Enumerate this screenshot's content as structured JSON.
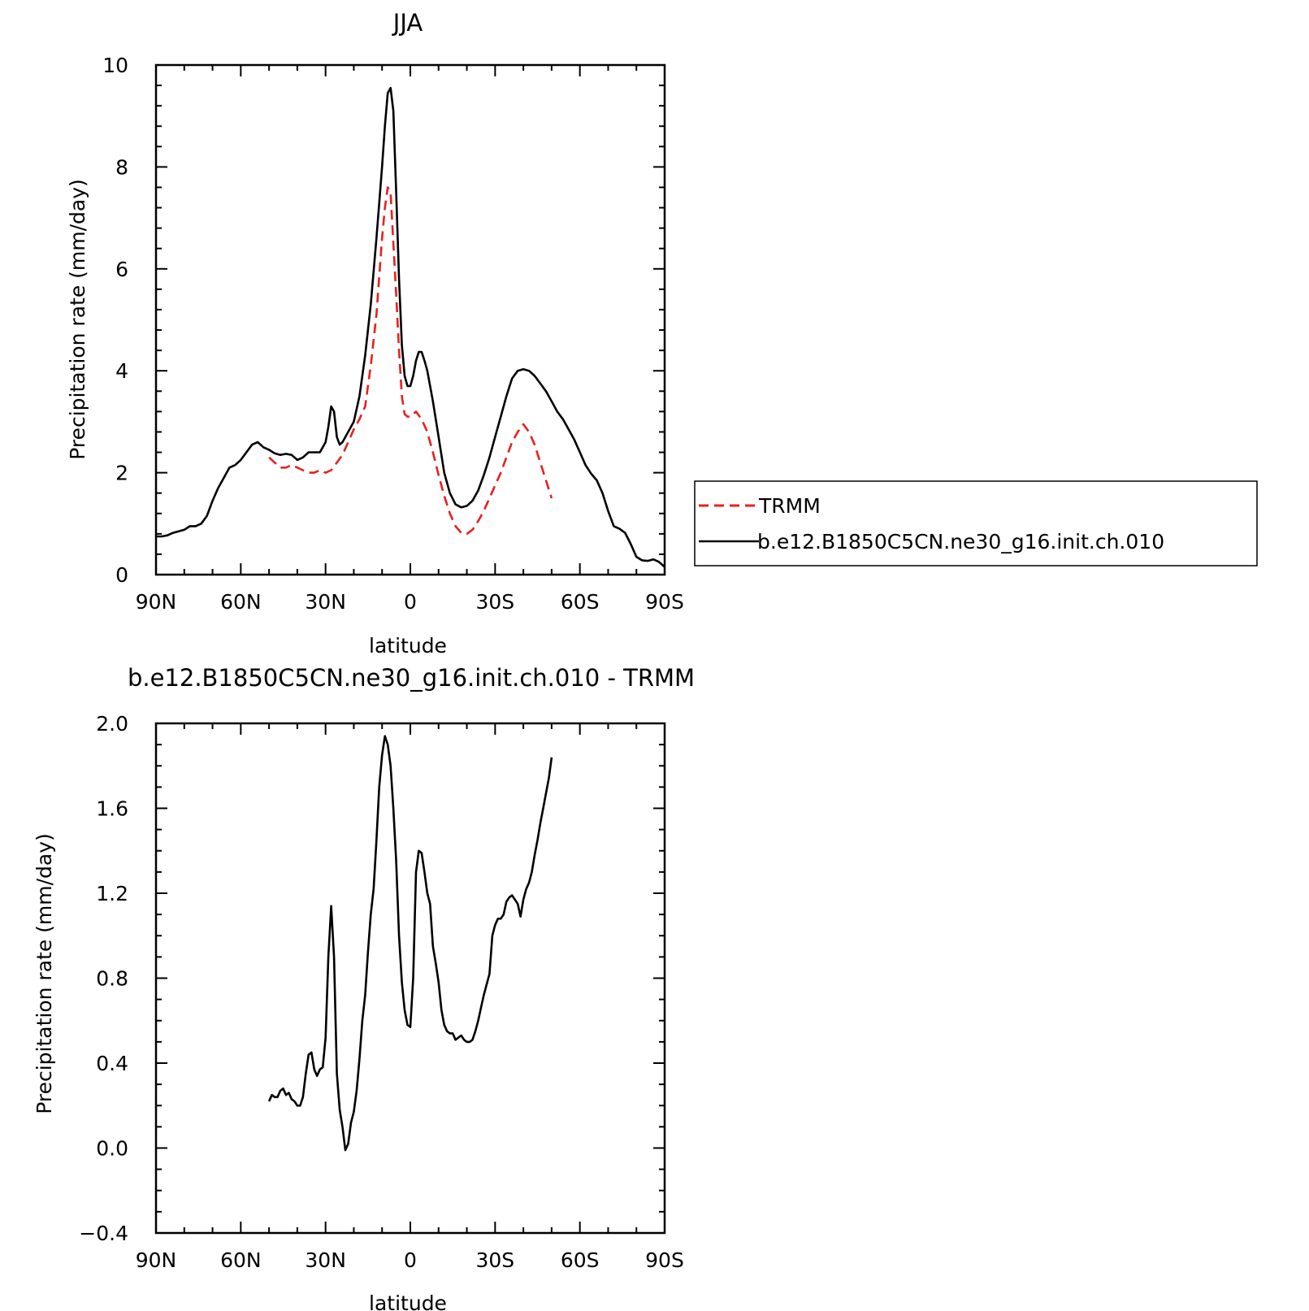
{
  "chart_data": [
    {
      "type": "line",
      "title": "JJA",
      "xlabel": "latitude",
      "ylabel": "Precipitation rate (mm/day)",
      "xlim": [
        90,
        -90
      ],
      "ylim": [
        0,
        10
      ],
      "x_ticks": [
        90,
        60,
        30,
        0,
        -30,
        -60,
        -90
      ],
      "x_tick_labels": [
        "90N",
        "60N",
        "30N",
        "0",
        "30S",
        "60S",
        "90S"
      ],
      "y_ticks": [
        0,
        2,
        4,
        6,
        8,
        10
      ],
      "y_tick_labels": [
        "0",
        "2",
        "4",
        "6",
        "8",
        "10"
      ],
      "legend": {
        "position": "right",
        "entries": [
          "TRMM",
          "b.e12.B1850C5CN.ne30_g16.init.ch.010"
        ]
      },
      "series": [
        {
          "name": "TRMM",
          "color": "#e8201f",
          "dash": "dashed",
          "x": [
            50,
            48,
            46,
            44,
            42,
            40,
            38,
            36,
            34,
            32,
            30,
            28,
            26,
            24,
            22,
            20,
            18,
            16,
            14,
            12,
            10,
            9,
            8,
            7,
            6,
            5,
            4,
            3,
            2,
            1,
            0,
            -2,
            -4,
            -6,
            -8,
            -10,
            -12,
            -14,
            -16,
            -18,
            -20,
            -22,
            -24,
            -26,
            -28,
            -30,
            -32,
            -34,
            -36,
            -38,
            -40,
            -42,
            -44,
            -46,
            -48,
            -50
          ],
          "y": [
            2.3,
            2.2,
            2.1,
            2.1,
            2.15,
            2.1,
            2.05,
            2.0,
            2.0,
            2.05,
            2.0,
            2.05,
            2.2,
            2.35,
            2.6,
            2.85,
            3.05,
            3.3,
            4.1,
            5.1,
            6.6,
            7.2,
            7.6,
            7.5,
            6.5,
            5.5,
            4.4,
            3.5,
            3.15,
            3.1,
            3.1,
            3.2,
            3.05,
            2.8,
            2.4,
            1.95,
            1.55,
            1.2,
            0.95,
            0.82,
            0.8,
            0.88,
            1.05,
            1.25,
            1.5,
            1.75,
            2.0,
            2.3,
            2.6,
            2.8,
            2.95,
            2.8,
            2.55,
            2.2,
            1.85,
            1.5
          ]
        },
        {
          "name": "b.e12.B1850C5CN.ne30_g16.init.ch.010",
          "color": "#000000",
          "dash": "solid",
          "x": [
            90,
            88,
            86,
            84,
            82,
            80,
            78,
            76,
            74,
            72,
            70,
            68,
            66,
            64,
            62,
            60,
            58,
            56,
            54,
            52,
            50,
            48,
            46,
            44,
            42,
            40,
            38,
            36,
            34,
            32,
            30,
            29,
            28,
            27,
            26,
            25,
            24,
            22,
            20,
            18,
            16,
            14,
            12,
            10,
            9,
            8,
            7,
            6,
            5,
            4,
            3,
            2,
            1,
            0,
            -1,
            -2,
            -3,
            -4,
            -5,
            -6,
            -8,
            -10,
            -12,
            -14,
            -16,
            -18,
            -20,
            -22,
            -24,
            -26,
            -28,
            -30,
            -32,
            -34,
            -36,
            -38,
            -40,
            -42,
            -44,
            -46,
            -48,
            -50,
            -52,
            -54,
            -56,
            -58,
            -60,
            -62,
            -64,
            -66,
            -68,
            -70,
            -72,
            -74,
            -76,
            -78,
            -80,
            -82,
            -84,
            -86,
            -88,
            -90
          ],
          "y": [
            0.75,
            0.75,
            0.77,
            0.82,
            0.85,
            0.88,
            0.95,
            0.95,
            1.0,
            1.15,
            1.45,
            1.7,
            1.9,
            2.1,
            2.15,
            2.25,
            2.4,
            2.55,
            2.6,
            2.5,
            2.45,
            2.38,
            2.35,
            2.37,
            2.35,
            2.25,
            2.3,
            2.4,
            2.4,
            2.4,
            2.6,
            2.9,
            3.3,
            3.2,
            2.7,
            2.55,
            2.6,
            2.8,
            3.0,
            3.5,
            4.3,
            5.3,
            6.6,
            8.0,
            8.8,
            9.45,
            9.55,
            9.1,
            7.5,
            5.8,
            4.5,
            3.9,
            3.7,
            3.7,
            3.9,
            4.2,
            4.37,
            4.37,
            4.2,
            4.0,
            3.4,
            2.7,
            2.0,
            1.6,
            1.38,
            1.32,
            1.35,
            1.45,
            1.65,
            1.95,
            2.3,
            2.7,
            3.1,
            3.5,
            3.85,
            4.0,
            4.03,
            4.0,
            3.9,
            3.75,
            3.6,
            3.4,
            3.2,
            3.05,
            2.85,
            2.65,
            2.4,
            2.15,
            1.98,
            1.85,
            1.6,
            1.25,
            0.95,
            0.9,
            0.82,
            0.6,
            0.35,
            0.28,
            0.27,
            0.3,
            0.25,
            0.15
          ]
        }
      ]
    },
    {
      "type": "line",
      "title": "b.e12.B1850C5CN.ne30_g16.init.ch.010 - TRMM",
      "xlabel": "latitude",
      "ylabel": "Precipitation rate (mm/day)",
      "xlim": [
        90,
        -90
      ],
      "ylim": [
        -0.4,
        2.0
      ],
      "x_ticks": [
        90,
        60,
        30,
        0,
        -30,
        -60,
        -90
      ],
      "x_tick_labels": [
        "90N",
        "60N",
        "30N",
        "0",
        "30S",
        "60S",
        "90S"
      ],
      "y_ticks": [
        -0.4,
        0.0,
        0.4,
        0.8,
        1.2,
        1.6,
        2.0
      ],
      "y_tick_labels": [
        "−0.4",
        "0.0",
        "0.4",
        "0.8",
        "1.2",
        "1.6",
        "2.0"
      ],
      "series": [
        {
          "color": "#000000",
          "dash": "solid",
          "x": [
            50,
            49,
            48,
            47,
            46,
            45,
            44,
            43,
            42,
            41,
            40,
            39,
            38,
            37,
            36,
            35,
            34,
            33,
            32,
            31,
            30,
            29,
            28,
            27,
            26,
            25,
            24,
            23,
            22,
            21,
            20,
            19,
            18,
            17,
            16,
            15,
            14,
            13,
            12,
            11,
            10,
            9,
            8,
            7,
            6,
            5,
            4,
            3,
            2,
            1,
            0,
            -1,
            -2,
            -3,
            -4,
            -5,
            -6,
            -7,
            -8,
            -9,
            -10,
            -11,
            -12,
            -13,
            -14,
            -15,
            -16,
            -17,
            -18,
            -19,
            -20,
            -21,
            -22,
            -23,
            -24,
            -25,
            -26,
            -27,
            -28,
            -29,
            -30,
            -31,
            -32,
            -33,
            -34,
            -35,
            -36,
            -37,
            -38,
            -39,
            -40,
            -41,
            -42,
            -43,
            -44,
            -45,
            -46,
            -47,
            -48,
            -49,
            -50
          ],
          "y": [
            0.22,
            0.25,
            0.24,
            0.24,
            0.27,
            0.28,
            0.25,
            0.26,
            0.23,
            0.22,
            0.2,
            0.2,
            0.24,
            0.35,
            0.44,
            0.45,
            0.37,
            0.34,
            0.37,
            0.38,
            0.52,
            0.9,
            1.14,
            0.9,
            0.35,
            0.18,
            0.1,
            -0.01,
            0.02,
            0.12,
            0.17,
            0.27,
            0.42,
            0.6,
            0.72,
            0.92,
            1.1,
            1.22,
            1.45,
            1.7,
            1.85,
            1.94,
            1.9,
            1.8,
            1.6,
            1.35,
            1.0,
            0.78,
            0.65,
            0.58,
            0.57,
            0.8,
            1.3,
            1.4,
            1.39,
            1.3,
            1.2,
            1.15,
            0.95,
            0.87,
            0.78,
            0.65,
            0.58,
            0.55,
            0.54,
            0.54,
            0.51,
            0.52,
            0.53,
            0.51,
            0.5,
            0.5,
            0.51,
            0.55,
            0.6,
            0.66,
            0.72,
            0.77,
            0.82,
            1.0,
            1.05,
            1.08,
            1.08,
            1.1,
            1.16,
            1.18,
            1.19,
            1.17,
            1.15,
            1.09,
            1.17,
            1.22,
            1.25,
            1.3,
            1.38,
            1.45,
            1.53,
            1.6,
            1.67,
            1.74,
            1.84
          ]
        }
      ]
    }
  ]
}
